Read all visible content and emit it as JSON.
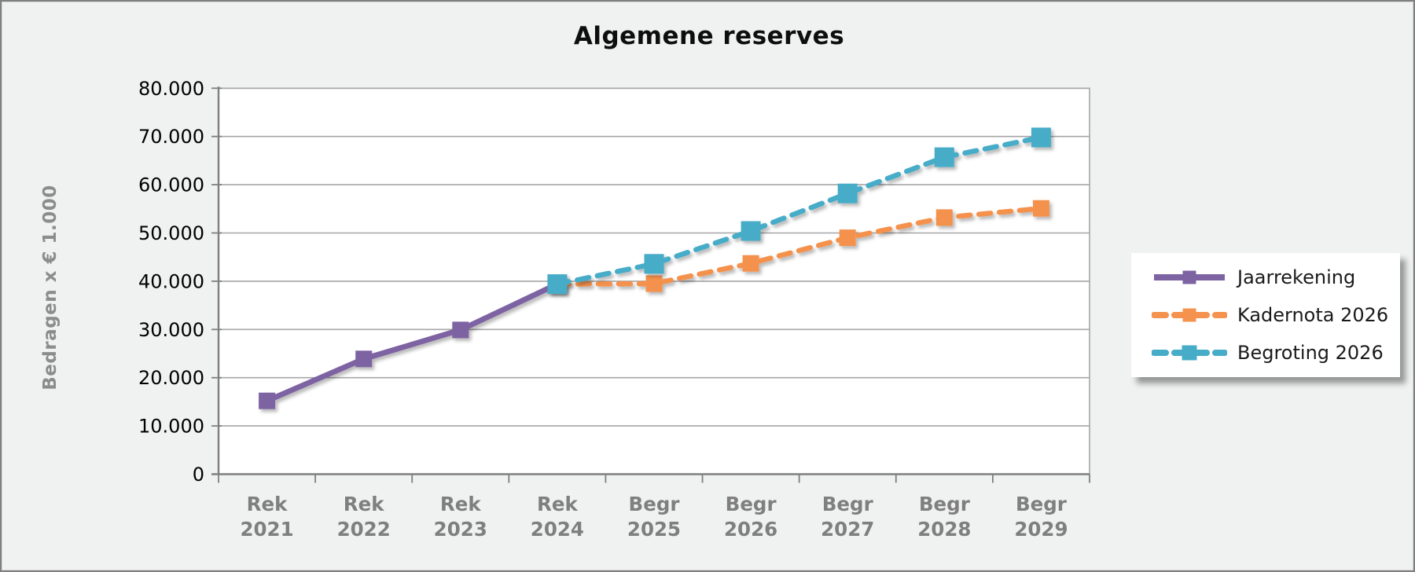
{
  "chart_data": {
    "type": "line",
    "title": "Algemene reserves",
    "ylabel": "Bedragen x € 1.000",
    "xlabel": "",
    "ylim": [
      0,
      80000
    ],
    "ytick_step": 10000,
    "ytick_labels": [
      "0",
      "10.000",
      "20.000",
      "30.000",
      "40.000",
      "50.000",
      "60.000",
      "70.000",
      "80.000"
    ],
    "grid": "horizontal",
    "legend_position": "right",
    "categories": [
      "Rek 2021",
      "Rek 2022",
      "Rek 2023",
      "Rek 2024",
      "Begr 2025",
      "Begr 2026",
      "Begr 2027",
      "Begr 2028",
      "Begr 2029"
    ],
    "series": [
      {
        "name": "Jaarrekening",
        "color": "#7e63a3",
        "line_style": "solid",
        "marker": "square",
        "values": [
          15200,
          23900,
          29900,
          39400,
          null,
          null,
          null,
          null,
          null
        ]
      },
      {
        "name": "Kadernota 2026",
        "color": "#f4924e",
        "line_style": "dashed",
        "marker": "square",
        "values": [
          null,
          null,
          null,
          39400,
          39500,
          43700,
          49000,
          53200,
          55100
        ]
      },
      {
        "name": "Begroting 2026",
        "color": "#46acc8",
        "line_style": "dashed",
        "marker": "square",
        "values": [
          null,
          null,
          null,
          39400,
          43600,
          50400,
          58200,
          65700,
          69800
        ]
      }
    ],
    "colors": {
      "background": "#f0f1f1",
      "plot_background": "#ffffff",
      "gridline": "#a6a6a6",
      "axis": "#7f7f7f",
      "tick_label": "#000000",
      "category_label": "#7f7f7f",
      "axis_title": "#8c8c8c",
      "title": "#0e0e0e",
      "legend_text": "#1a1a1a"
    }
  }
}
